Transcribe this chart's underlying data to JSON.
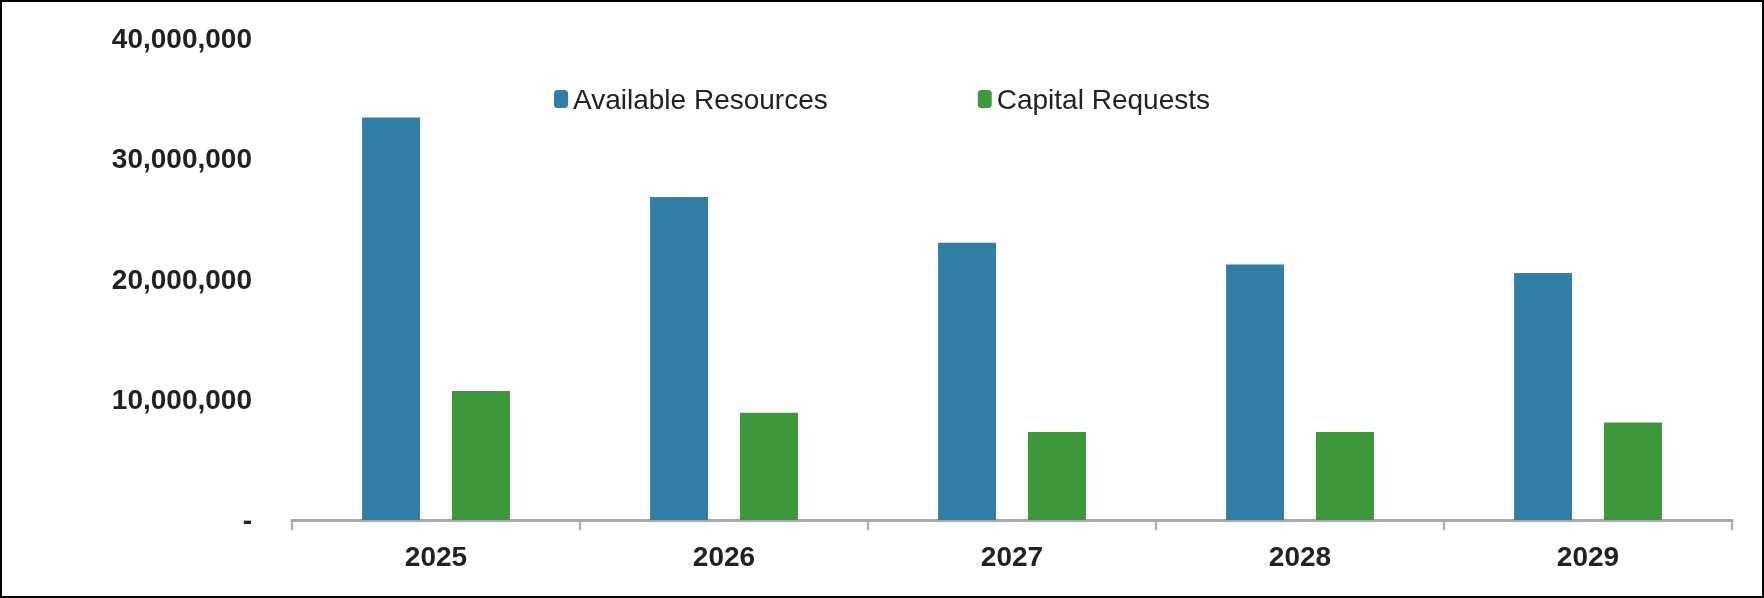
{
  "chart_data": {
    "type": "bar",
    "categories": [
      "2025",
      "2026",
      "2027",
      "2028",
      "2029"
    ],
    "series": [
      {
        "name": "Available Resources",
        "color": "#2f7fa6",
        "values": [
          33400000,
          26800000,
          23000000,
          21200000,
          20500000
        ]
      },
      {
        "name": "Capital Requests",
        "color": "#3c9a3c",
        "values": [
          10700000,
          8900000,
          7300000,
          7300000,
          8100000
        ]
      }
    ],
    "ylim": [
      0,
      40000000
    ],
    "yticks": [
      {
        "value": 0,
        "label": "-"
      },
      {
        "value": 10000000,
        "label": "10,000,000"
      },
      {
        "value": 20000000,
        "label": "20,000,000"
      },
      {
        "value": 30000000,
        "label": "30,000,000"
      },
      {
        "value": 40000000,
        "label": "40,000,000"
      }
    ],
    "grid": false,
    "legend": "top"
  }
}
